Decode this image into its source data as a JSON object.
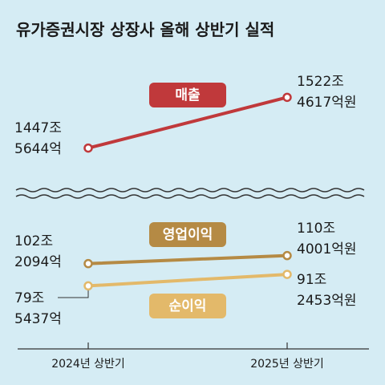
{
  "chart_data": {
    "type": "line",
    "title": "유가증권시장 상장사 올해 상반기 실적",
    "categories": [
      "2024년 상반기",
      "2025년 상반기"
    ],
    "series": [
      {
        "name": "매출",
        "color": "#c0393b",
        "values": [
          1447.5644,
          1522.4617
        ],
        "unit": "조원",
        "labels": [
          [
            "1447조",
            "5644억"
          ],
          [
            "1522조",
            "4617억원"
          ]
        ]
      },
      {
        "name": "영업이익",
        "color": "#b58a44",
        "values": [
          102.2094,
          110.4001
        ],
        "unit": "조원",
        "labels": [
          [
            "102조",
            "2094억"
          ],
          [
            "110조",
            "4001억원"
          ]
        ]
      },
      {
        "name": "순이익",
        "color": "#e3b96a",
        "values": [
          79.5437,
          91.2453
        ],
        "unit": "조원",
        "labels": [
          [
            "79조",
            "5437억"
          ],
          [
            "91조",
            "2453억원"
          ]
        ]
      }
    ],
    "axis_break": true,
    "grid": false,
    "legend": "inline badges"
  }
}
